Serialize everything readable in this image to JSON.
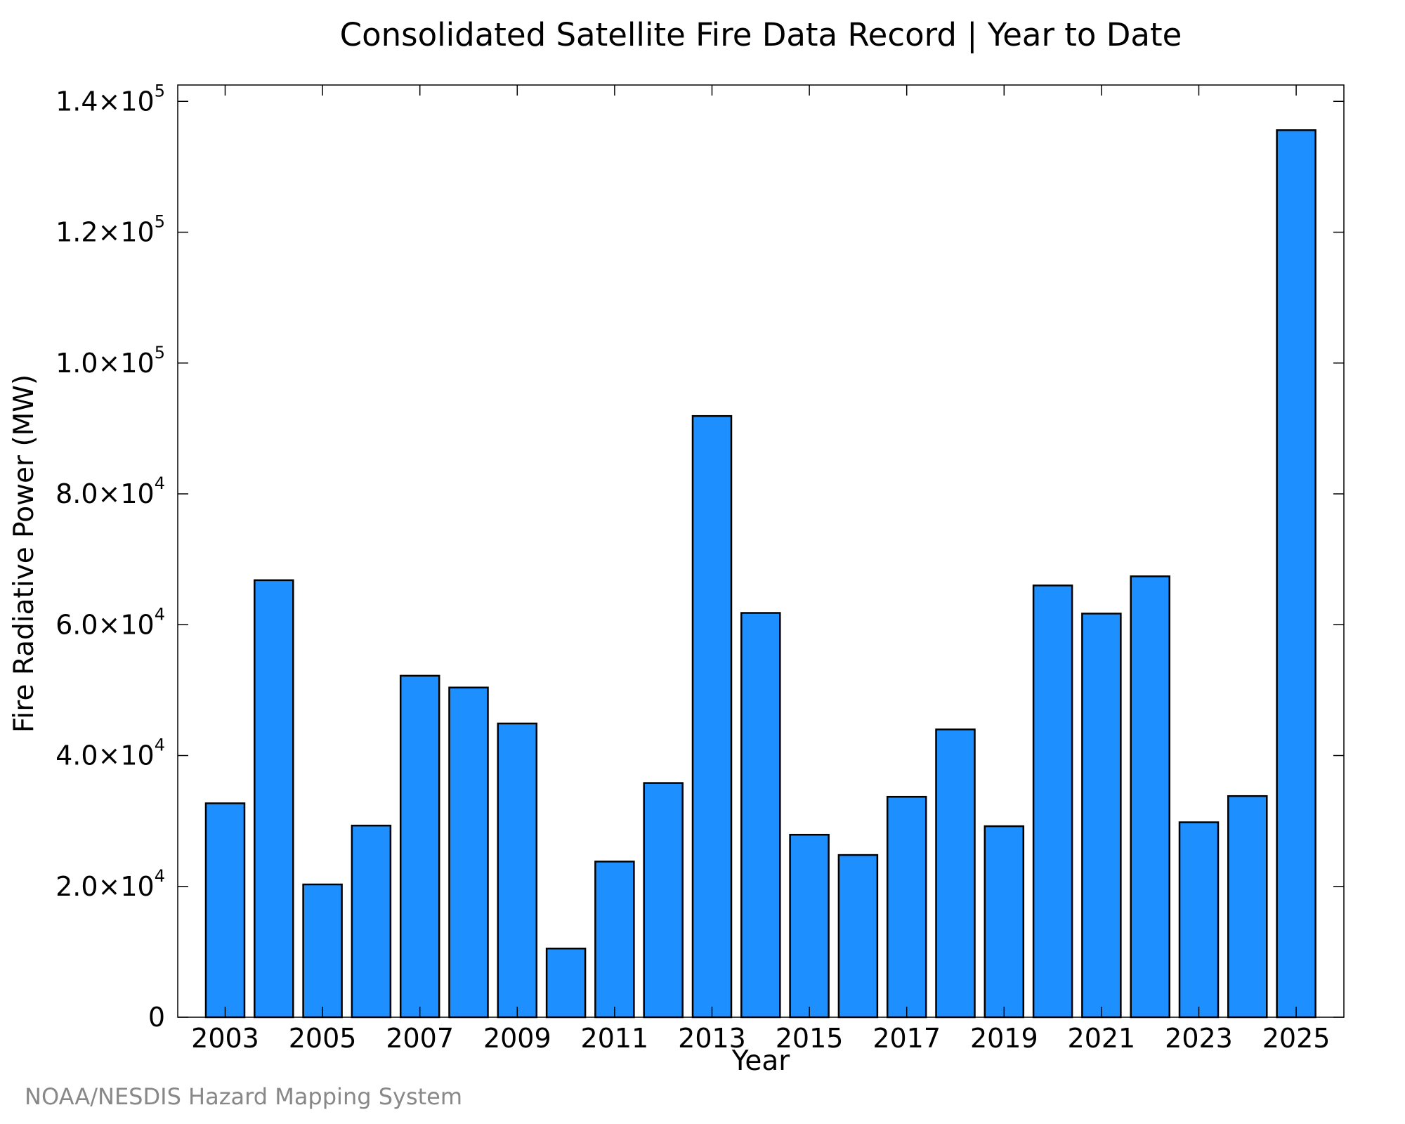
{
  "chart_data": {
    "type": "bar",
    "title": "Consolidated Satellite Fire Data Record | Year to Date",
    "xlabel": "Year",
    "ylabel": "Fire Radiative Power (MW)",
    "categories": [
      "2003",
      "2004",
      "2005",
      "2006",
      "2007",
      "2008",
      "2009",
      "2010",
      "2011",
      "2012",
      "2013",
      "2014",
      "2015",
      "2016",
      "2017",
      "2018",
      "2019",
      "2020",
      "2021",
      "2022",
      "2023",
      "2024",
      "2025"
    ],
    "values": [
      32700,
      66800,
      20300,
      29300,
      52200,
      50400,
      44900,
      10500,
      23800,
      35800,
      91900,
      61800,
      27900,
      24800,
      33700,
      44000,
      29200,
      66000,
      61700,
      67400,
      29800,
      33800,
      135600
    ],
    "ylim": [
      0,
      142500
    ],
    "x_tick_labels": [
      "2003",
      "2005",
      "2007",
      "2009",
      "2011",
      "2013",
      "2015",
      "2017",
      "2019",
      "2021",
      "2023",
      "2025"
    ],
    "y_ticks": [
      {
        "value": 0,
        "mantissa": "0",
        "exponent": ""
      },
      {
        "value": 20000,
        "mantissa": "2.0×10",
        "exponent": "4"
      },
      {
        "value": 40000,
        "mantissa": "4.0×10",
        "exponent": "4"
      },
      {
        "value": 60000,
        "mantissa": "6.0×10",
        "exponent": "4"
      },
      {
        "value": 80000,
        "mantissa": "8.0×10",
        "exponent": "4"
      },
      {
        "value": 100000,
        "mantissa": "1.0×10",
        "exponent": "5"
      },
      {
        "value": 120000,
        "mantissa": "1.2×10",
        "exponent": "5"
      },
      {
        "value": 140000,
        "mantissa": "1.4×10",
        "exponent": "5"
      }
    ],
    "grid": false,
    "bar_color": "#1e8fff",
    "bar_edge_color": "#000000"
  },
  "credit": "NOAA/NESDIS Hazard Mapping System"
}
